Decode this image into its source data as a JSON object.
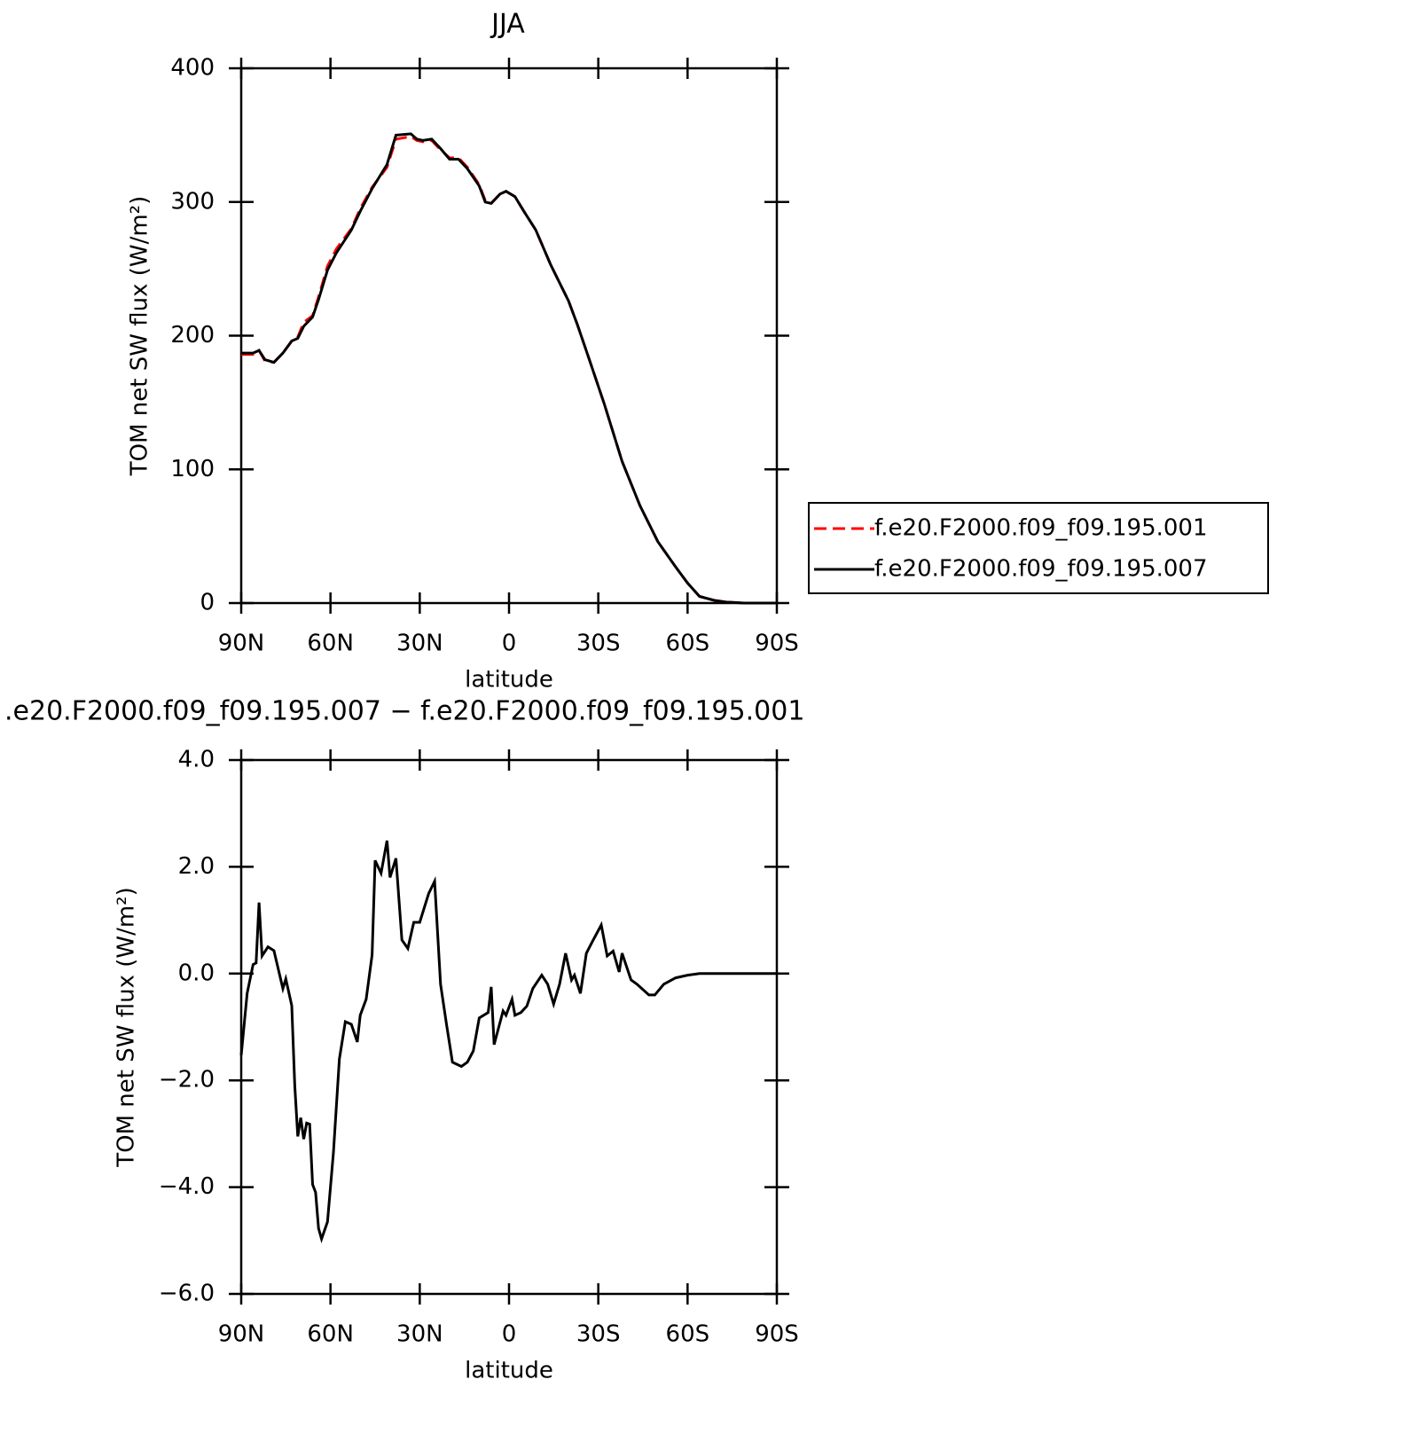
{
  "chart_data": [
    {
      "type": "line",
      "title": "JJA",
      "xlabel": "latitude",
      "ylabel": "TOM net SW flux (W/m²)",
      "x": [
        90,
        86,
        84,
        82,
        79,
        76,
        73,
        71,
        69,
        66,
        64,
        61,
        58,
        53,
        50,
        46,
        41,
        38,
        33,
        31,
        29,
        26,
        23,
        20,
        17,
        14,
        10,
        8,
        6,
        3,
        1,
        -2,
        -5,
        -9,
        -14,
        -20,
        -23,
        -27,
        -32,
        -38,
        -44,
        -50,
        -56,
        -60,
        -64,
        -69,
        -73,
        -79,
        -90
      ],
      "xlim": [
        90,
        -90
      ],
      "xticks": [
        {
          "value": 90,
          "label": "90N"
        },
        {
          "value": 60,
          "label": "60N"
        },
        {
          "value": 30,
          "label": "30N"
        },
        0,
        {
          "value": -30,
          "label": "30S"
        },
        {
          "value": -60,
          "label": "60S"
        },
        {
          "value": -90,
          "label": "90S"
        }
      ],
      "ylim": [
        0,
        400
      ],
      "yticks": [
        0,
        100,
        200,
        300,
        400
      ],
      "legend": "right",
      "series": [
        {
          "name": "f.e20.F2000.f09_f09.195.001",
          "color": "#ff0000",
          "dash": "dashed",
          "values": [
            186,
            186,
            189,
            181,
            180,
            187,
            196,
            199,
            210,
            215,
            229,
            252,
            265,
            280,
            295,
            311,
            326,
            347,
            349,
            346,
            345,
            346,
            339,
            333,
            333,
            326,
            313,
            301,
            299,
            306,
            308,
            304,
            293,
            279,
            253,
            226,
            208,
            182,
            149,
            106,
            73,
            46,
            27,
            15,
            5,
            2,
            0.7,
            0,
            0
          ]
        },
        {
          "name": "f.e20.F2000.f09_f09.195.007",
          "color": "#000000",
          "dash": "solid",
          "values": [
            187,
            187,
            189,
            182,
            180,
            187,
            196,
            198,
            207,
            214,
            227,
            249,
            262,
            279,
            293,
            310,
            328,
            350,
            351,
            347,
            346,
            347,
            340,
            332,
            332,
            325,
            312,
            300,
            299,
            306,
            308,
            304,
            293,
            279,
            253,
            226,
            208,
            182,
            149,
            106,
            73,
            46,
            27,
            15,
            5,
            2,
            0.7,
            0,
            0
          ]
        }
      ]
    },
    {
      "type": "line",
      "title": ".e20.F2000.f09_f09.195.007 − f.e20.F2000.f09_f09.195.001",
      "xlabel": "latitude",
      "ylabel": "TOM net SW flux (W/m²)",
      "x": [
        90,
        88,
        86,
        85,
        84,
        83,
        81,
        79,
        76,
        75,
        73,
        72,
        71,
        70,
        69,
        68,
        67,
        66,
        65,
        64,
        63,
        61,
        59,
        57,
        55,
        53,
        51,
        50,
        48,
        46,
        45,
        43,
        41,
        40,
        38,
        36,
        34,
        32,
        30,
        27,
        25,
        23,
        21,
        19,
        16,
        14,
        12,
        10,
        7,
        6,
        5,
        2,
        1,
        -1,
        -2,
        -4,
        -6,
        -8,
        -11,
        -13,
        -15,
        -17,
        -19,
        -21,
        -22,
        -24,
        -26,
        -28,
        -31,
        -33,
        -35,
        -37,
        -38,
        -41,
        -43,
        -47,
        -49,
        -52,
        -56,
        -60,
        -64,
        -90
      ],
      "xlim": [
        90,
        -90
      ],
      "xticks": [
        {
          "value": 90,
          "label": "90N"
        },
        {
          "value": 60,
          "label": "60N"
        },
        {
          "value": 30,
          "label": "30N"
        },
        0,
        {
          "value": -30,
          "label": "30S"
        },
        {
          "value": -60,
          "label": "60S"
        },
        {
          "value": -90,
          "label": "90S"
        }
      ],
      "ylim": [
        -6,
        4
      ],
      "yticks": [
        {
          "value": -6,
          "label": "−6.0"
        },
        {
          "value": -4,
          "label": "−4.0"
        },
        {
          "value": -2,
          "label": "−2.0"
        },
        {
          "value": 0,
          "label": "0.0"
        },
        {
          "value": 2,
          "label": "2.0"
        },
        {
          "value": 4,
          "label": "4.0"
        }
      ],
      "color": "#000000",
      "values": [
        -1.53,
        -0.37,
        0.17,
        0.2,
        1.33,
        0.33,
        0.5,
        0.43,
        -0.28,
        -0.1,
        -0.6,
        -2.1,
        -3.05,
        -2.7,
        -3.1,
        -2.8,
        -2.82,
        -3.95,
        -4.1,
        -4.77,
        -4.97,
        -4.65,
        -3.35,
        -1.6,
        -0.9,
        -0.95,
        -1.28,
        -0.78,
        -0.48,
        0.35,
        2.12,
        1.88,
        2.49,
        1.8,
        2.16,
        0.63,
        0.47,
        0.96,
        0.96,
        1.5,
        1.73,
        -0.2,
        -0.95,
        -1.66,
        -1.74,
        -1.66,
        -1.45,
        -0.83,
        -0.73,
        -0.25,
        -1.33,
        -0.7,
        -0.78,
        -0.48,
        -0.78,
        -0.73,
        -0.61,
        -0.28,
        -0.03,
        -0.2,
        -0.57,
        -0.2,
        0.38,
        -0.12,
        -0.03,
        -0.37,
        0.38,
        0.6,
        0.91,
        0.33,
        0.42,
        0.03,
        0.38,
        -0.12,
        -0.2,
        -0.4,
        -0.4,
        -0.2,
        -0.08,
        -0.03,
        0,
        0
      ]
    }
  ]
}
